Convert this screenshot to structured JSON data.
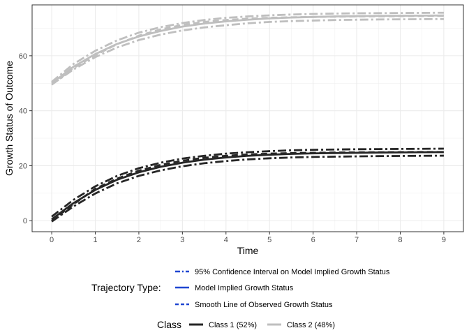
{
  "chart_data": {
    "type": "line",
    "title": "",
    "xlabel": "Time",
    "ylabel": "Growth Status of Outcome",
    "xlim": [
      -0.45,
      9.45
    ],
    "ylim": [
      -4,
      78.5
    ],
    "xticks": [
      0,
      1,
      2,
      3,
      4,
      5,
      6,
      7,
      8,
      9
    ],
    "yticks": [
      0,
      20,
      40,
      60
    ],
    "grid": true,
    "legend_position": "bottom",
    "trajectory_legend": {
      "title": "Trajectory Type:",
      "items": [
        {
          "label": "95% Confidence Interval on Model Implied Growth Status",
          "line_style": "dotdash"
        },
        {
          "label": "Model Implied Growth Status",
          "line_style": "solid"
        },
        {
          "label": "Smooth Line of Observed Growth Status",
          "line_style": "dashed"
        }
      ],
      "key_color": "#1f46d1"
    },
    "class_legend": {
      "title": "Class",
      "items": [
        {
          "label": "Class 1 (52%)",
          "color": "#262626"
        },
        {
          "label": "Class 2 (48%)",
          "color": "#bfbfbf"
        }
      ]
    },
    "x": [
      0,
      0.5,
      1,
      1.5,
      2,
      2.5,
      3,
      3.5,
      4,
      4.5,
      5,
      5.5,
      6,
      6.5,
      7,
      7.5,
      8,
      8.5,
      9
    ],
    "series": [
      {
        "class": "Class 1 (52%)",
        "type": "Model Implied Growth Status",
        "color": "#262626",
        "style": "solid",
        "values": [
          0.5,
          6.4,
          11.2,
          14.9,
          17.6,
          19.6,
          21.1,
          22.2,
          23.0,
          23.6,
          24.0,
          24.3,
          24.5,
          24.6,
          24.7,
          24.8,
          24.85,
          24.9,
          24.95
        ]
      },
      {
        "class": "Class 1 (52%)",
        "type": "95% Confidence Interval on Model Implied Growth Status",
        "color": "#262626",
        "style": "dotdash",
        "values": [
          1.5,
          7.6,
          12.5,
          16.3,
          19.1,
          21.1,
          22.6,
          23.6,
          24.4,
          24.9,
          25.3,
          25.6,
          25.8,
          25.9,
          26.0,
          26.05,
          26.1,
          26.15,
          26.2
        ]
      },
      {
        "class": "Class 1 (52%)",
        "type": "95% Confidence Interval on Model Implied Growth Status",
        "color": "#262626",
        "style": "dotdash",
        "values": [
          -0.3,
          5.2,
          9.9,
          13.6,
          16.3,
          18.3,
          19.8,
          20.9,
          21.7,
          22.3,
          22.7,
          23.0,
          23.2,
          23.3,
          23.4,
          23.5,
          23.55,
          23.6,
          23.65
        ]
      },
      {
        "class": "Class 1 (52%)",
        "type": "Smooth Line of Observed Growth Status",
        "color": "#262626",
        "style": "dashed",
        "values": [
          0.0,
          6.0,
          11.6,
          15.3,
          18.2,
          20.3,
          21.8,
          22.9,
          23.6,
          24.1,
          24.4,
          24.6,
          24.7,
          24.8,
          24.85,
          24.9,
          24.95,
          25.0,
          25.0
        ]
      },
      {
        "class": "Class 2 (48%)",
        "type": "Model Implied Growth Status",
        "color": "#bfbfbf",
        "style": "solid",
        "values": [
          50.0,
          56.0,
          60.6,
          64.3,
          67.0,
          69.0,
          70.6,
          71.7,
          72.5,
          73.1,
          73.6,
          73.9,
          74.1,
          74.3,
          74.4,
          74.5,
          74.55,
          74.6,
          74.65
        ]
      },
      {
        "class": "Class 2 (48%)",
        "type": "95% Confidence Interval on Model Implied Growth Status",
        "color": "#bfbfbf",
        "style": "dotdash",
        "values": [
          50.5,
          57.0,
          61.8,
          65.6,
          68.4,
          70.4,
          71.9,
          73.0,
          73.8,
          74.3,
          74.7,
          75.0,
          75.2,
          75.35,
          75.45,
          75.5,
          75.55,
          75.6,
          75.65
        ]
      },
      {
        "class": "Class 2 (48%)",
        "type": "95% Confidence Interval on Model Implied Growth Status",
        "color": "#bfbfbf",
        "style": "dotdash",
        "values": [
          49.5,
          55.0,
          59.5,
          63.0,
          65.7,
          67.7,
          69.2,
          70.3,
          71.1,
          71.8,
          72.3,
          72.6,
          72.8,
          73.0,
          73.1,
          73.2,
          73.25,
          73.3,
          73.35
        ]
      },
      {
        "class": "Class 2 (48%)",
        "type": "Smooth Line of Observed Growth Status",
        "color": "#bfbfbf",
        "style": "dashed",
        "values": [
          49.5,
          55.5,
          60.2,
          64.2,
          67.3,
          69.6,
          71.2,
          72.3,
          73.0,
          73.5,
          73.8,
          74.0,
          74.1,
          74.2,
          74.3,
          74.35,
          74.4,
          74.45,
          74.5
        ]
      }
    ]
  }
}
